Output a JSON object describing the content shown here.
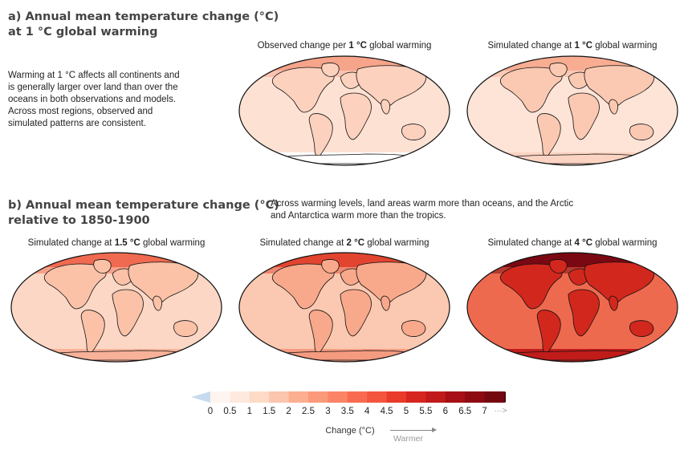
{
  "section_a": {
    "title_line1": "a) Annual mean temperature change (°C)",
    "title_line2": "at 1 °C global warming",
    "description": [
      "Warming at 1 °C affects all continents and",
      "is generally larger over land than over the",
      "oceans in both observations and models.",
      "Across most regions, observed and",
      "simulated patterns are consistent."
    ],
    "maps": [
      {
        "prefix": "Observed change per ",
        "level": "1 °C",
        "suffix": " global warming"
      },
      {
        "prefix": "Simulated change at ",
        "level": "1 °C",
        "suffix": " global warming"
      }
    ]
  },
  "section_b": {
    "title_line1": "b) Annual mean temperature change (°C)",
    "title_line2": "relative to 1850-1900",
    "description": [
      "Across warming levels, land areas warm more than oceans, and the Arctic",
      "and Antarctica warm more than the tropics."
    ],
    "maps": [
      {
        "prefix": "Simulated change at ",
        "level": "1.5 °C",
        "suffix": " global warming"
      },
      {
        "prefix": "Simulated change at ",
        "level": "2 °C",
        "suffix": " global warming"
      },
      {
        "prefix": "Simulated change at ",
        "level": "4 °C",
        "suffix": " global warming"
      }
    ]
  },
  "colorbar": {
    "tick_labels": [
      "0",
      "0.5",
      "1",
      "1.5",
      "2",
      "2.5",
      "3",
      "3.5",
      "4",
      "4.5",
      "5",
      "5.5",
      "6",
      "6.5",
      "7"
    ],
    "more_glyph": "···>",
    "title": "Change (°C)",
    "arrow_label": "Warmer",
    "colors": {
      "negative": "#c6dbef",
      "bins": [
        "#fff5f0",
        "#fee9df",
        "#fddbc7",
        "#fcc5ad",
        "#fcae91",
        "#fb9a7b",
        "#fb8466",
        "#f86b50",
        "#f4553d",
        "#e93a2a",
        "#d7251f",
        "#c01a1a",
        "#a50f15",
        "#8d0a12",
        "#740710"
      ],
      "overflow": "#52030a"
    }
  },
  "map_colors": {
    "a_observed": {
      "ocean": "#fde2d4",
      "land": "#fcd1bd",
      "arctic": "#f6a48a",
      "antarctic": "#ffffff"
    },
    "a_simulated": {
      "ocean": "#fde4d7",
      "land": "#fbc9b2",
      "arctic": "#f8ad93",
      "antarctic": "#fbd3c2"
    },
    "b_1p5": {
      "ocean": "#fcd7c5",
      "land": "#fbc2a8",
      "arctic": "#ef6a50",
      "antarctic": "#f7b299"
    },
    "b_2": {
      "ocean": "#fbc8b1",
      "land": "#f9a98b",
      "arctic": "#e2452f",
      "antarctic": "#f49b80"
    },
    "b_4": {
      "ocean": "#ee6a4f",
      "land": "#d2271d",
      "arctic": "#7a0812",
      "antarctic": "#c01c1a"
    }
  }
}
